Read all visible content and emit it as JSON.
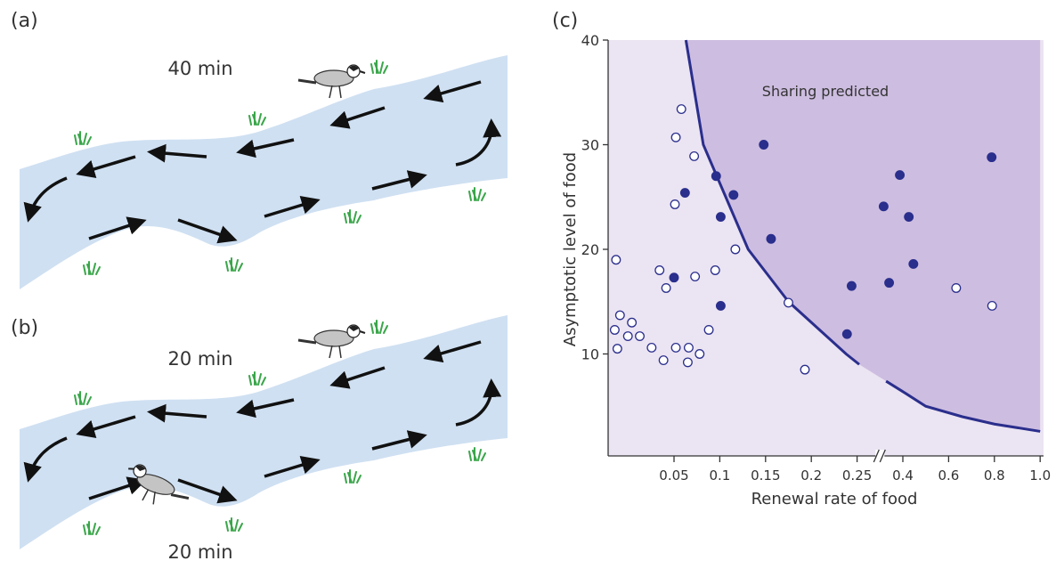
{
  "panels": [
    {
      "label": "(a)",
      "times": [
        "40 min"
      ]
    },
    {
      "label": "(b)",
      "times": [
        "20 min",
        "20 min"
      ]
    }
  ],
  "chart_data": {
    "type": "scatter",
    "label": "(c)",
    "xlabel": "Renewal rate of food",
    "ylabel": "Asymptotic level of food",
    "annotation": "Sharing predicted",
    "xlim": [
      0,
      1
    ],
    "ylim": [
      0,
      40
    ],
    "xticks": [
      0.05,
      0.1,
      0.15,
      0.2,
      0.25,
      0.4,
      0.6,
      0.8,
      {
        "value": 1,
        "label": "1.0"
      }
    ],
    "yticks": [
      10,
      20,
      30,
      40
    ],
    "x_axis_break": true,
    "series": [
      {
        "filled": true,
        "color": "#2a2e8c",
        "x": [
          0.062,
          0.05,
          0.096,
          0.101,
          0.115,
          0.148,
          0.156,
          0.101,
          0.244,
          0.239,
          0.337,
          0.39,
          0.426,
          0.355,
          0.446,
          0.788
        ],
        "y": [
          25.4,
          17.3,
          27.0,
          23.1,
          25.2,
          30.0,
          21.0,
          14.6,
          16.5,
          11.9,
          24.1,
          27.1,
          23.1,
          16.8,
          18.6,
          28.8
        ]
      },
      {
        "filled": false,
        "color": "#2a2e8c",
        "x": [
          0.058,
          0.052,
          0.072,
          0.051,
          0.006,
          0.039,
          0.044,
          0.073,
          0.095,
          0.117,
          0.009,
          0.018,
          0.005,
          0.015,
          0.024,
          0.007,
          0.033,
          0.042,
          0.052,
          0.066,
          0.065,
          0.078,
          0.088,
          0.175,
          0.193,
          0.633,
          0.79
        ],
        "y": [
          33.4,
          30.7,
          28.9,
          24.3,
          19.0,
          18.0,
          16.3,
          17.4,
          18.0,
          20.0,
          13.7,
          13.0,
          12.3,
          11.7,
          11.7,
          10.5,
          10.6,
          9.4,
          10.6,
          10.6,
          9.2,
          10.0,
          12.3,
          14.9,
          8.5,
          16.3,
          14.6
        ]
      }
    ],
    "curve": {
      "color": "#2a2e8c",
      "region_color": "#cdbde0",
      "background": "#ebe4f2",
      "x": [
        0.063,
        0.082,
        0.131,
        0.175,
        0.238,
        0.257,
        0.3,
        0.345,
        0.4,
        0.5,
        0.66,
        0.8,
        1.0
      ],
      "y": [
        40,
        30,
        20,
        15,
        10,
        9.0,
        null,
        7.4,
        6.4,
        5.0,
        4.0,
        3.3,
        2.6
      ]
    }
  }
}
